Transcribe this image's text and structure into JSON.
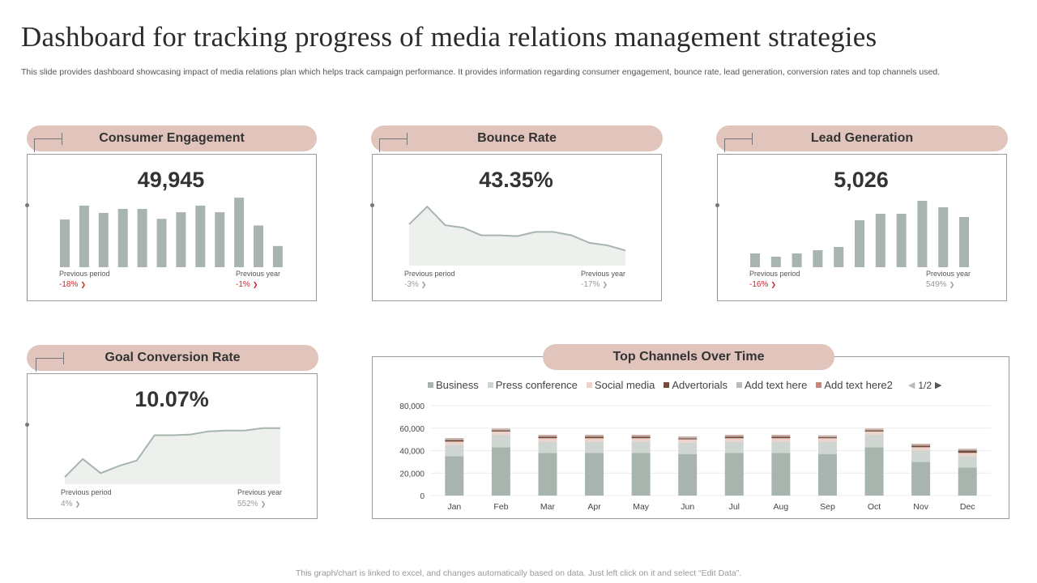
{
  "title": "Dashboard for tracking progress of media relations management strategies",
  "description": "This slide provides dashboard showcasing impact of media relations plan which helps track campaign performance. It provides information regarding consumer engagement, bounce rate, lead generation, conversion rates and top channels used.",
  "footer": "This graph/chart is linked to excel,  and changes automatically based on data. Just left click on it and select “Edit Data”.",
  "colors": {
    "pill": "#e1c5bc",
    "bar": "#a8b5ae",
    "area_fill": "#eef0ee",
    "area_line": "#a8b5ae",
    "negative": "#d2232a",
    "neutral": "#9a9a9a"
  },
  "panels": {
    "consumer_engagement": {
      "heading": "Consumer Engagement",
      "value": "49,945",
      "previous_period_label": "Previous period",
      "previous_period_delta": "-18%",
      "previous_period_status": "negative",
      "previous_year_label": "Previous year",
      "previous_year_delta": "-1%",
      "previous_year_status": "negative"
    },
    "bounce_rate": {
      "heading": "Bounce Rate",
      "value": "43.35%",
      "previous_period_label": "Previous period",
      "previous_period_delta": "-3%",
      "previous_period_status": "neutral",
      "previous_year_label": "Previous year",
      "previous_year_delta": "-17%",
      "previous_year_status": "neutral"
    },
    "lead_generation": {
      "heading": "Lead Generation",
      "value": "5,026",
      "previous_period_label": "Previous period",
      "previous_period_delta": "-16%",
      "previous_period_status": "negative",
      "previous_year_label": "Previous year",
      "previous_year_delta": "549%",
      "previous_year_status": "neutral"
    },
    "goal_conversion_rate": {
      "heading": "Goal Conversion Rate",
      "value": "10.07%",
      "previous_period_label": "Previous period",
      "previous_period_delta": "4%",
      "previous_period_status": "neutral",
      "previous_year_label": "Previous year",
      "previous_year_delta": "552%",
      "previous_year_status": "neutral"
    },
    "top_channels": {
      "heading": "Top Channels Over Time",
      "pager": "1/2"
    }
  },
  "chart_data": [
    {
      "id": "consumer_engagement_spark",
      "type": "bar",
      "title": "",
      "values": [
        72,
        93,
        82,
        88,
        88,
        73,
        83,
        93,
        83,
        105,
        63,
        32
      ],
      "ylim": [
        0,
        110
      ]
    },
    {
      "id": "bounce_rate_spark",
      "type": "area",
      "title": "",
      "values": [
        49,
        70,
        48,
        45,
        36,
        36,
        35,
        40,
        40,
        36,
        27,
        24,
        18
      ],
      "ylim": [
        0,
        75
      ]
    },
    {
      "id": "lead_generation_spark",
      "type": "bar",
      "title": "",
      "values": [
        17,
        13,
        17,
        21,
        25,
        58,
        66,
        66,
        82,
        74,
        62
      ],
      "ylim": [
        0,
        90
      ]
    },
    {
      "id": "goal_conversion_spark",
      "type": "area",
      "title": "",
      "values": [
        9,
        32,
        14,
        23,
        30,
        62,
        62,
        63,
        67,
        68,
        68,
        71,
        71
      ],
      "ylim": [
        0,
        80
      ]
    },
    {
      "id": "top_channels_over_time",
      "type": "bar",
      "stacked": true,
      "title": "Top Channels Over Time",
      "categories": [
        "Jan",
        "Feb",
        "Mar",
        "Apr",
        "May",
        "Jun",
        "Jul",
        "Aug",
        "Sep",
        "Oct",
        "Nov",
        "Dec"
      ],
      "ylim": [
        0,
        80000
      ],
      "yticks": [
        "0",
        "20,000",
        "40,000",
        "60,000",
        "80,000"
      ],
      "ytick_values": [
        0,
        20000,
        40000,
        60000,
        80000
      ],
      "legend_position": "top",
      "series": [
        {
          "name": "Business",
          "color": "#a8b5ae",
          "values": [
            35000,
            43000,
            38000,
            38000,
            38000,
            37000,
            38000,
            38000,
            37000,
            43000,
            30000,
            25000
          ]
        },
        {
          "name": "Press conference",
          "color": "#cfd6d1",
          "values": [
            10000,
            11000,
            10000,
            10000,
            10000,
            10000,
            10000,
            10000,
            11000,
            11000,
            10000,
            10000
          ]
        },
        {
          "name": "Social media",
          "color": "#ecd3cb",
          "values": [
            3000,
            3000,
            3000,
            3000,
            3000,
            3000,
            3000,
            3000,
            3000,
            3000,
            3000,
            3000
          ]
        },
        {
          "name": "Advertorials",
          "color": "#7a4a3a",
          "values": [
            1500,
            1000,
            1500,
            1500,
            1500,
            1000,
            1500,
            1500,
            1000,
            1000,
            1500,
            2000
          ]
        },
        {
          "name": "Add text here",
          "color": "#b7beb8",
          "values": [
            1000,
            1000,
            1000,
            1000,
            1000,
            1000,
            1000,
            1000,
            1000,
            1000,
            1000,
            1000
          ]
        },
        {
          "name": "Add text here2",
          "color": "#c9857a",
          "values": [
            500,
            500,
            500,
            500,
            500,
            500,
            500,
            500,
            500,
            500,
            500,
            500
          ]
        }
      ]
    }
  ]
}
